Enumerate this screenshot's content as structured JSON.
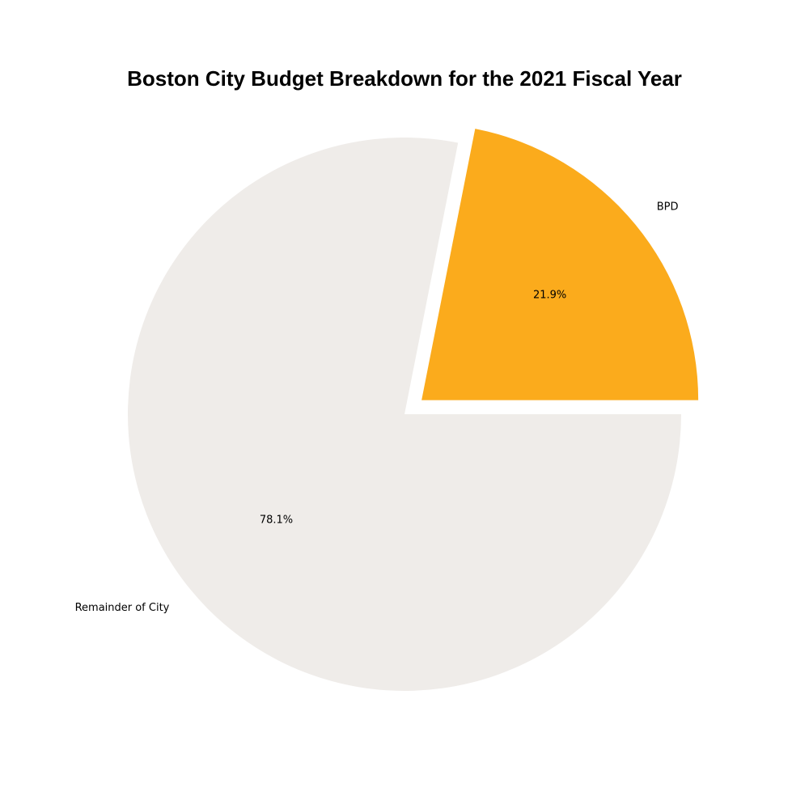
{
  "chart_data": {
    "type": "pie",
    "title": "Boston City Budget Breakdown for the 2021 Fiscal Year",
    "start_angle_deg": 0,
    "direction": "counterclockwise",
    "slices": [
      {
        "label": "BPD",
        "value": 21.9,
        "pct_label": "21.9%",
        "color": "#FBAB1C",
        "exploded": true
      },
      {
        "label": "Remainder of City",
        "value": 78.1,
        "pct_label": "78.1%",
        "color": "#EFECE9",
        "exploded": false
      }
    ]
  }
}
